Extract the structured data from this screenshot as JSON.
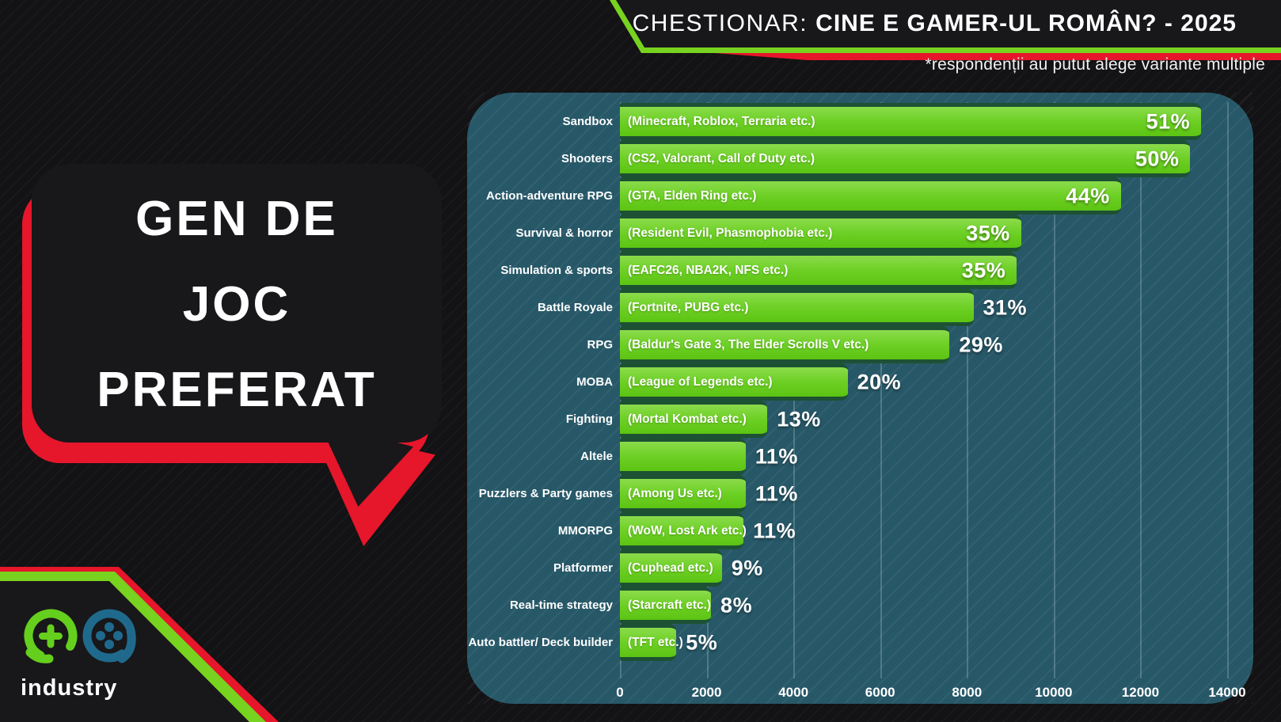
{
  "header": {
    "title_prefix": "CHESTIONAR:",
    "title_bold": "CINE E GAMER-UL ROMÂN? - 2025",
    "subtitle": "*respondenții au putut alege variante multiple"
  },
  "bubble": {
    "lines": [
      "GEN DE",
      "JOC",
      "PREFERAT"
    ]
  },
  "logo": {
    "brand": "industry"
  },
  "colors": {
    "accent_green": "#77d31f",
    "accent_red": "#e6162b",
    "bar_green": "#6ed026",
    "bar_separator_green": "#1d5134",
    "panel_teal": "#275868",
    "background_black": "#131214",
    "text_white": "#ffffff",
    "logo_blue": "#1f6a8c"
  },
  "chart_data": {
    "type": "bar",
    "orientation": "horizontal",
    "title": "GEN DE JOC PREFERAT",
    "note": "*respondenții au putut alege variante multiple",
    "xlabel": "",
    "ylabel": "",
    "x_axis": {
      "ticks": [
        "0",
        "2000",
        "4000",
        "6000",
        "8000",
        "10000",
        "12000",
        "14000"
      ],
      "min": 0,
      "max": 14000,
      "grid": true
    },
    "legend": null,
    "rows": [
      {
        "label": "Sandbox",
        "desc": "(Minecraft, Roblox, Terraria etc.)",
        "percent": "51%",
        "value": 13400
      },
      {
        "label": "Shooters",
        "desc": "(CS2, Valorant, Call of Duty etc.)",
        "percent": "50%",
        "value": 13150
      },
      {
        "label": "Action-adventure RPG",
        "desc": "(GTA, Elden Ring etc.)",
        "percent": "44%",
        "value": 11550
      },
      {
        "label": "Survival & horror",
        "desc": "(Resident Evil, Phasmophobia etc.)",
        "percent": "35%",
        "value": 9250
      },
      {
        "label": "Simulation & sports",
        "desc": "(EAFC26, NBA2K, NFS etc.)",
        "percent": "35%",
        "value": 9150
      },
      {
        "label": "Battle Royale",
        "desc": "(Fortnite, PUBG etc.)",
        "percent": "31%",
        "value": 8150
      },
      {
        "label": "RPG",
        "desc": "(Baldur's Gate 3,  The Elder Scrolls V etc.)",
        "percent": "29%",
        "value": 7600
      },
      {
        "label": "MOBA",
        "desc": "(League of Legends etc.)",
        "percent": "20%",
        "value": 5250
      },
      {
        "label": "Fighting",
        "desc": "(Mortal Kombat etc.)",
        "percent": "13%",
        "value": 3400
      },
      {
        "label": "Altele",
        "desc": "",
        "percent": "11%",
        "value": 2900
      },
      {
        "label": "Puzzlers & Party games",
        "desc": "(Among Us etc.)",
        "percent": "11%",
        "value": 2900
      },
      {
        "label": "MMORPG",
        "desc": "(WoW, Lost Ark etc.)",
        "percent": "11%",
        "value": 2850
      },
      {
        "label": "Platformer",
        "desc": "(Cuphead etc.)",
        "percent": "9%",
        "value": 2350
      },
      {
        "label": "Real-time strategy",
        "desc": "(Starcraft etc.)",
        "percent": "8%",
        "value": 2100
      },
      {
        "label": "Auto battler/ Deck builder",
        "desc": "(TFT etc.)",
        "percent": "5%",
        "value": 1300
      }
    ]
  }
}
